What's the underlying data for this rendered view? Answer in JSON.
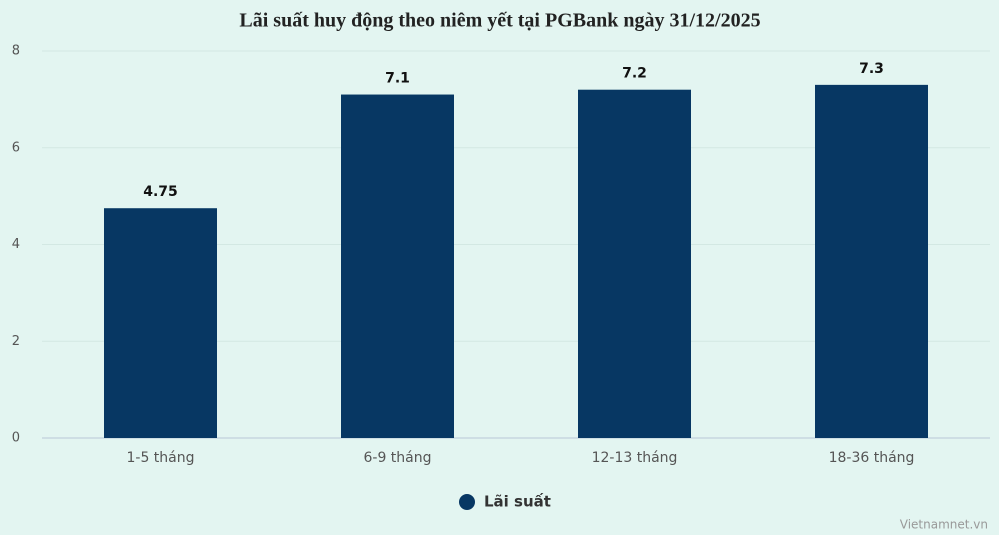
{
  "chart_data": {
    "type": "bar",
    "title": "Lãi suất huy động theo niêm yết tại PGBank ngày 31/12/2025",
    "categories": [
      "1-5 tháng",
      "6-9 tháng",
      "12-13 tháng",
      "18-36 tháng"
    ],
    "series": [
      {
        "name": "Lãi suất",
        "color": "#073763",
        "values": [
          4.75,
          7.1,
          7.2,
          7.3
        ]
      }
    ],
    "ylim": [
      0,
      8
    ],
    "yticks": [
      0,
      2,
      4,
      6,
      8
    ],
    "grid": true,
    "legend": "bottom",
    "credit": "Vietnamnet.vn"
  }
}
